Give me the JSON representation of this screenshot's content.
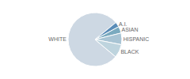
{
  "chart_data": {
    "type": "pie",
    "categories": [
      "WHITE",
      "A.I.",
      "ASIAN",
      "HISPANIC",
      "BLACK"
    ],
    "values": [
      78,
      3,
      4,
      7,
      8
    ],
    "colors": [
      "#cdd8e3",
      "#5b8db8",
      "#7aaabf",
      "#a8c4d4",
      "#bed4de"
    ]
  }
}
